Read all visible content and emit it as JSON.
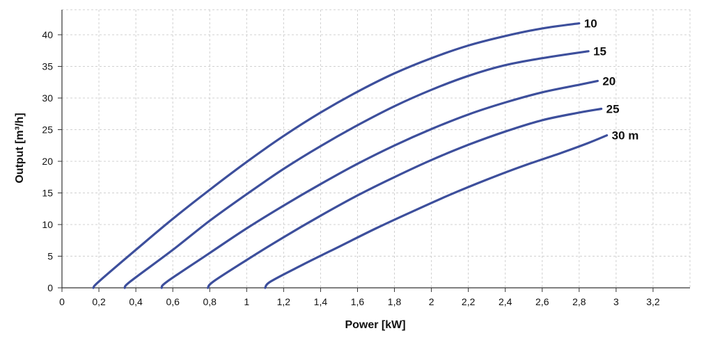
{
  "chart_data": {
    "type": "line",
    "title": "",
    "xlabel": "Power [kW]",
    "ylabel": "Output [m³/h]",
    "xlim": [
      0,
      3.4
    ],
    "ylim": [
      0,
      42
    ],
    "grid": true,
    "x_ticks": [
      "0",
      "0,2",
      "0,4",
      "0,6",
      "0,8",
      "1",
      "1,2",
      "1,4",
      "1,6",
      "1,8",
      "2",
      "2,2",
      "2,4",
      "2,6",
      "2,8",
      "3",
      "3,2"
    ],
    "y_ticks": [
      "0",
      "5",
      "10",
      "15",
      "20",
      "25",
      "30",
      "35",
      "40"
    ],
    "colors": {
      "series": "#3d4f9c",
      "grid": "#d0d0d0",
      "axis": "#333333"
    },
    "series": [
      {
        "name": "10",
        "points": [
          [
            0.17,
            0
          ],
          [
            0.2,
            1.0
          ],
          [
            0.4,
            6.0
          ],
          [
            0.6,
            10.9
          ],
          [
            0.8,
            15.5
          ],
          [
            1.0,
            19.9
          ],
          [
            1.2,
            24.0
          ],
          [
            1.4,
            27.7
          ],
          [
            1.6,
            31.0
          ],
          [
            1.8,
            33.9
          ],
          [
            2.0,
            36.3
          ],
          [
            2.2,
            38.3
          ],
          [
            2.4,
            39.8
          ],
          [
            2.6,
            41.0
          ],
          [
            2.8,
            41.8
          ]
        ]
      },
      {
        "name": "15",
        "points": [
          [
            0.34,
            0
          ],
          [
            0.37,
            1.0
          ],
          [
            0.6,
            6.0
          ],
          [
            0.8,
            10.6
          ],
          [
            1.0,
            14.8
          ],
          [
            1.2,
            18.8
          ],
          [
            1.4,
            22.4
          ],
          [
            1.6,
            25.7
          ],
          [
            1.8,
            28.7
          ],
          [
            2.0,
            31.3
          ],
          [
            2.2,
            33.5
          ],
          [
            2.4,
            35.2
          ],
          [
            2.6,
            36.3
          ],
          [
            2.85,
            37.4
          ]
        ]
      },
      {
        "name": "20",
        "points": [
          [
            0.54,
            0
          ],
          [
            0.57,
            1.0
          ],
          [
            0.8,
            5.5
          ],
          [
            1.0,
            9.4
          ],
          [
            1.2,
            13.0
          ],
          [
            1.4,
            16.4
          ],
          [
            1.6,
            19.6
          ],
          [
            1.8,
            22.5
          ],
          [
            2.0,
            25.1
          ],
          [
            2.2,
            27.4
          ],
          [
            2.4,
            29.3
          ],
          [
            2.6,
            30.9
          ],
          [
            2.8,
            32.1
          ],
          [
            2.9,
            32.7
          ]
        ]
      },
      {
        "name": "25",
        "points": [
          [
            0.79,
            0
          ],
          [
            0.82,
            1.0
          ],
          [
            1.0,
            4.4
          ],
          [
            1.2,
            8.0
          ],
          [
            1.4,
            11.4
          ],
          [
            1.6,
            14.6
          ],
          [
            1.8,
            17.5
          ],
          [
            2.0,
            20.2
          ],
          [
            2.2,
            22.6
          ],
          [
            2.4,
            24.7
          ],
          [
            2.6,
            26.5
          ],
          [
            2.8,
            27.7
          ],
          [
            2.92,
            28.3
          ]
        ]
      },
      {
        "name": "30 m",
        "points": [
          [
            1.1,
            0
          ],
          [
            1.13,
            1.0
          ],
          [
            1.3,
            3.6
          ],
          [
            1.5,
            6.5
          ],
          [
            1.7,
            9.4
          ],
          [
            1.9,
            12.1
          ],
          [
            2.1,
            14.7
          ],
          [
            2.3,
            17.1
          ],
          [
            2.5,
            19.3
          ],
          [
            2.7,
            21.3
          ],
          [
            2.85,
            22.9
          ],
          [
            2.95,
            24.1
          ]
        ]
      }
    ]
  }
}
